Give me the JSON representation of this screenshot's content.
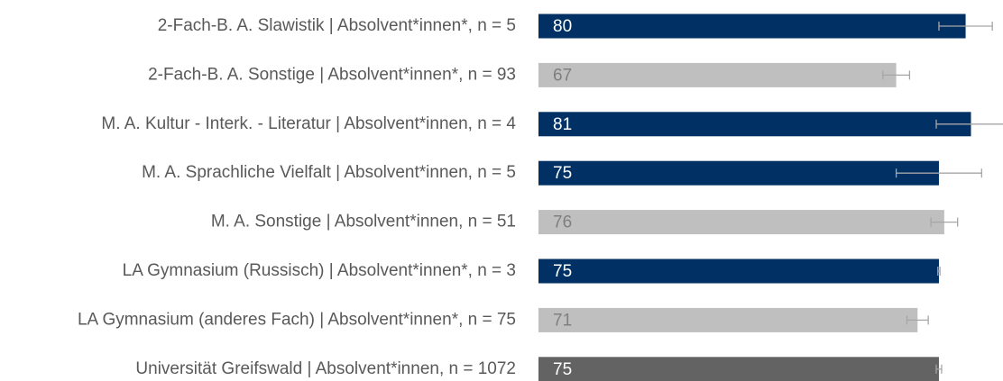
{
  "chart_data": {
    "type": "hbar",
    "categories": [
      "2-Fach-B. A. Slawistik | Absolvent*innen*, n = 5",
      "2-Fach-B. A. Sonstige | Absolvent*innen*, n = 93",
      "M. A. Kultur - Interk. - Literatur | Absolvent*innen, n = 4",
      "M. A. Sprachliche Vielfalt | Absolvent*innen, n = 5",
      "M. A. Sonstige | Absolvent*innen, n = 51",
      "LA Gymnasium (Russisch) | Absolvent*innen*, n = 3",
      "LA Gymnasium (anderes Fach) | Absolvent*innen*, n = 75",
      "Universität Greifswald | Absolvent*innen, n = 1072"
    ],
    "values": [
      80,
      67,
      81,
      75,
      76,
      75,
      71,
      75
    ],
    "errors": [
      5,
      2.5,
      6.5,
      8,
      2.5,
      0.2,
      2,
      0.5
    ],
    "colors": [
      "#003064",
      "#bfbfbf",
      "#003064",
      "#003064",
      "#bfbfbf",
      "#003064",
      "#bfbfbf",
      "#636363"
    ],
    "xlim": [
      0,
      87
    ]
  }
}
